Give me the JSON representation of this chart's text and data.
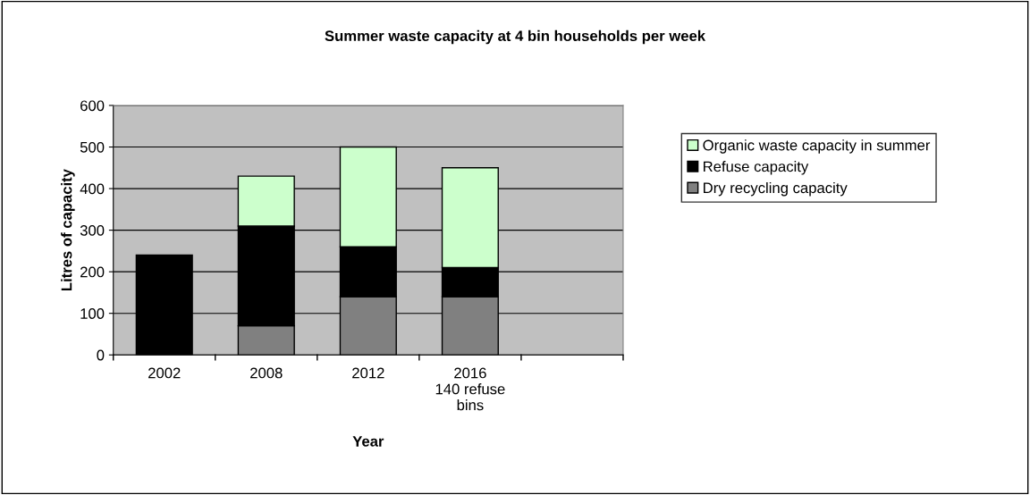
{
  "chart_data": {
    "type": "bar",
    "title": "Summer waste capacity at 4 bin households per week",
    "xlabel": "Year",
    "ylabel": "Litres of capacity",
    "categories": [
      "2002",
      "2008",
      "2012",
      "2016\n140 refuse\nbins",
      null
    ],
    "stacked": true,
    "series": [
      {
        "name": "Dry recycling capacity",
        "color": "#808080",
        "values": [
          null,
          70,
          140,
          140,
          null
        ]
      },
      {
        "name": "Refuse capacity",
        "color": "#000000",
        "values": [
          240,
          240,
          120,
          70,
          null
        ]
      },
      {
        "name": "Organic waste capacity in summer",
        "color": "#ccffcc",
        "values": [
          null,
          120,
          240,
          240,
          null
        ]
      }
    ],
    "ylim": [
      0,
      600
    ],
    "yticks": [
      0,
      100,
      200,
      300,
      400,
      500,
      600
    ],
    "grid": "y",
    "legend": "right"
  }
}
